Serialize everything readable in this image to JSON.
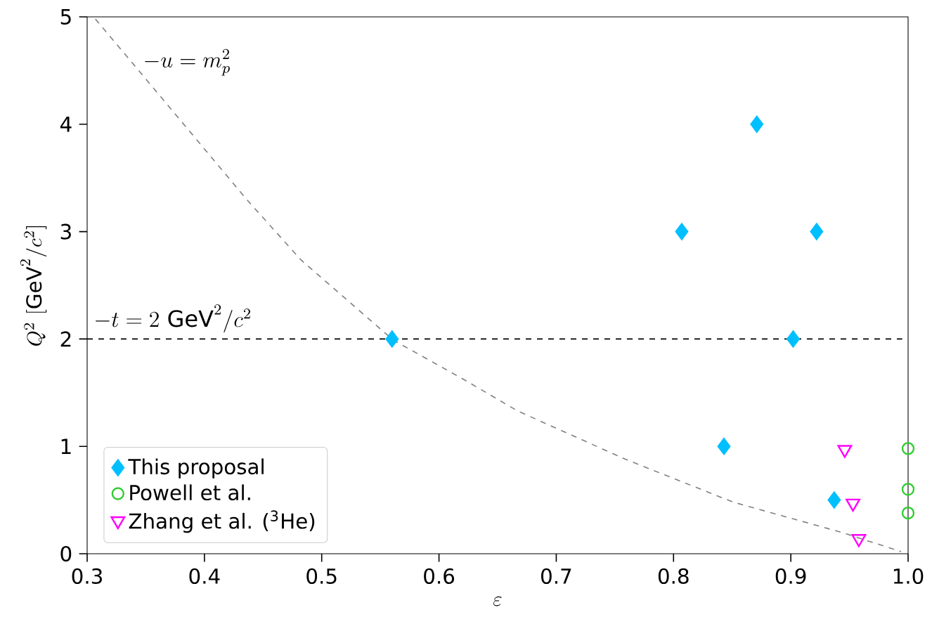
{
  "chart_data": {
    "type": "scatter",
    "xlabel": "\\varepsilon",
    "ylabel": "Q^2\\ [\\mathrm{GeV}^2/c^2]",
    "xlim": [
      0.3,
      1.0
    ],
    "ylim": [
      0,
      5
    ],
    "xticks": [
      0.3,
      0.4,
      0.5,
      0.6,
      0.7,
      0.8,
      0.9,
      {
        "value": 1.0,
        "label": "1.0"
      }
    ],
    "yticks": [
      0,
      1,
      2,
      3,
      4,
      5
    ],
    "legend": "bottom left",
    "annotations": [
      "-u = m_p^2"
    ],
    "ref_lines": [
      {
        "axis": "y",
        "value": 2,
        "label": "-t = 2\\ \\mathrm{GeV}^2/c^2",
        "color": "#000000",
        "line_style": "dashed"
      }
    ],
    "series": [
      {
        "type": "line",
        "color": "#808080",
        "line_style": "dashed",
        "marker": "none",
        "x": [
          0.307,
          0.344,
          0.39,
          0.436,
          0.482,
          0.561,
          0.62,
          0.667,
          0.759,
          0.851,
          0.943,
          0.994
        ],
        "values": [
          4.98,
          4.5,
          3.9,
          3.3,
          2.74,
          1.99,
          1.63,
          1.33,
          0.88,
          0.48,
          0.2,
          0.02
        ]
      },
      {
        "name": "This proposal",
        "color": "#00bfff",
        "marker": "diamond",
        "x": [
          0.56,
          0.807,
          0.871,
          0.922,
          0.902,
          0.843,
          0.937
        ],
        "values": [
          2,
          3,
          4,
          3,
          2,
          1,
          0.5
        ]
      },
      {
        "name": "Powell et al.",
        "color": "#33cc33",
        "marker": "circle",
        "x": [
          1.0,
          1.0,
          1.0
        ],
        "values": [
          0.98,
          0.6,
          0.38
        ]
      },
      {
        "name": "Zhang et al. ($^{3}$He)",
        "color": "#ff00ff",
        "marker": "triangle",
        "x": [
          0.946,
          0.953,
          0.958
        ],
        "values": [
          0.97,
          0.47,
          0.14
        ]
      }
    ]
  }
}
